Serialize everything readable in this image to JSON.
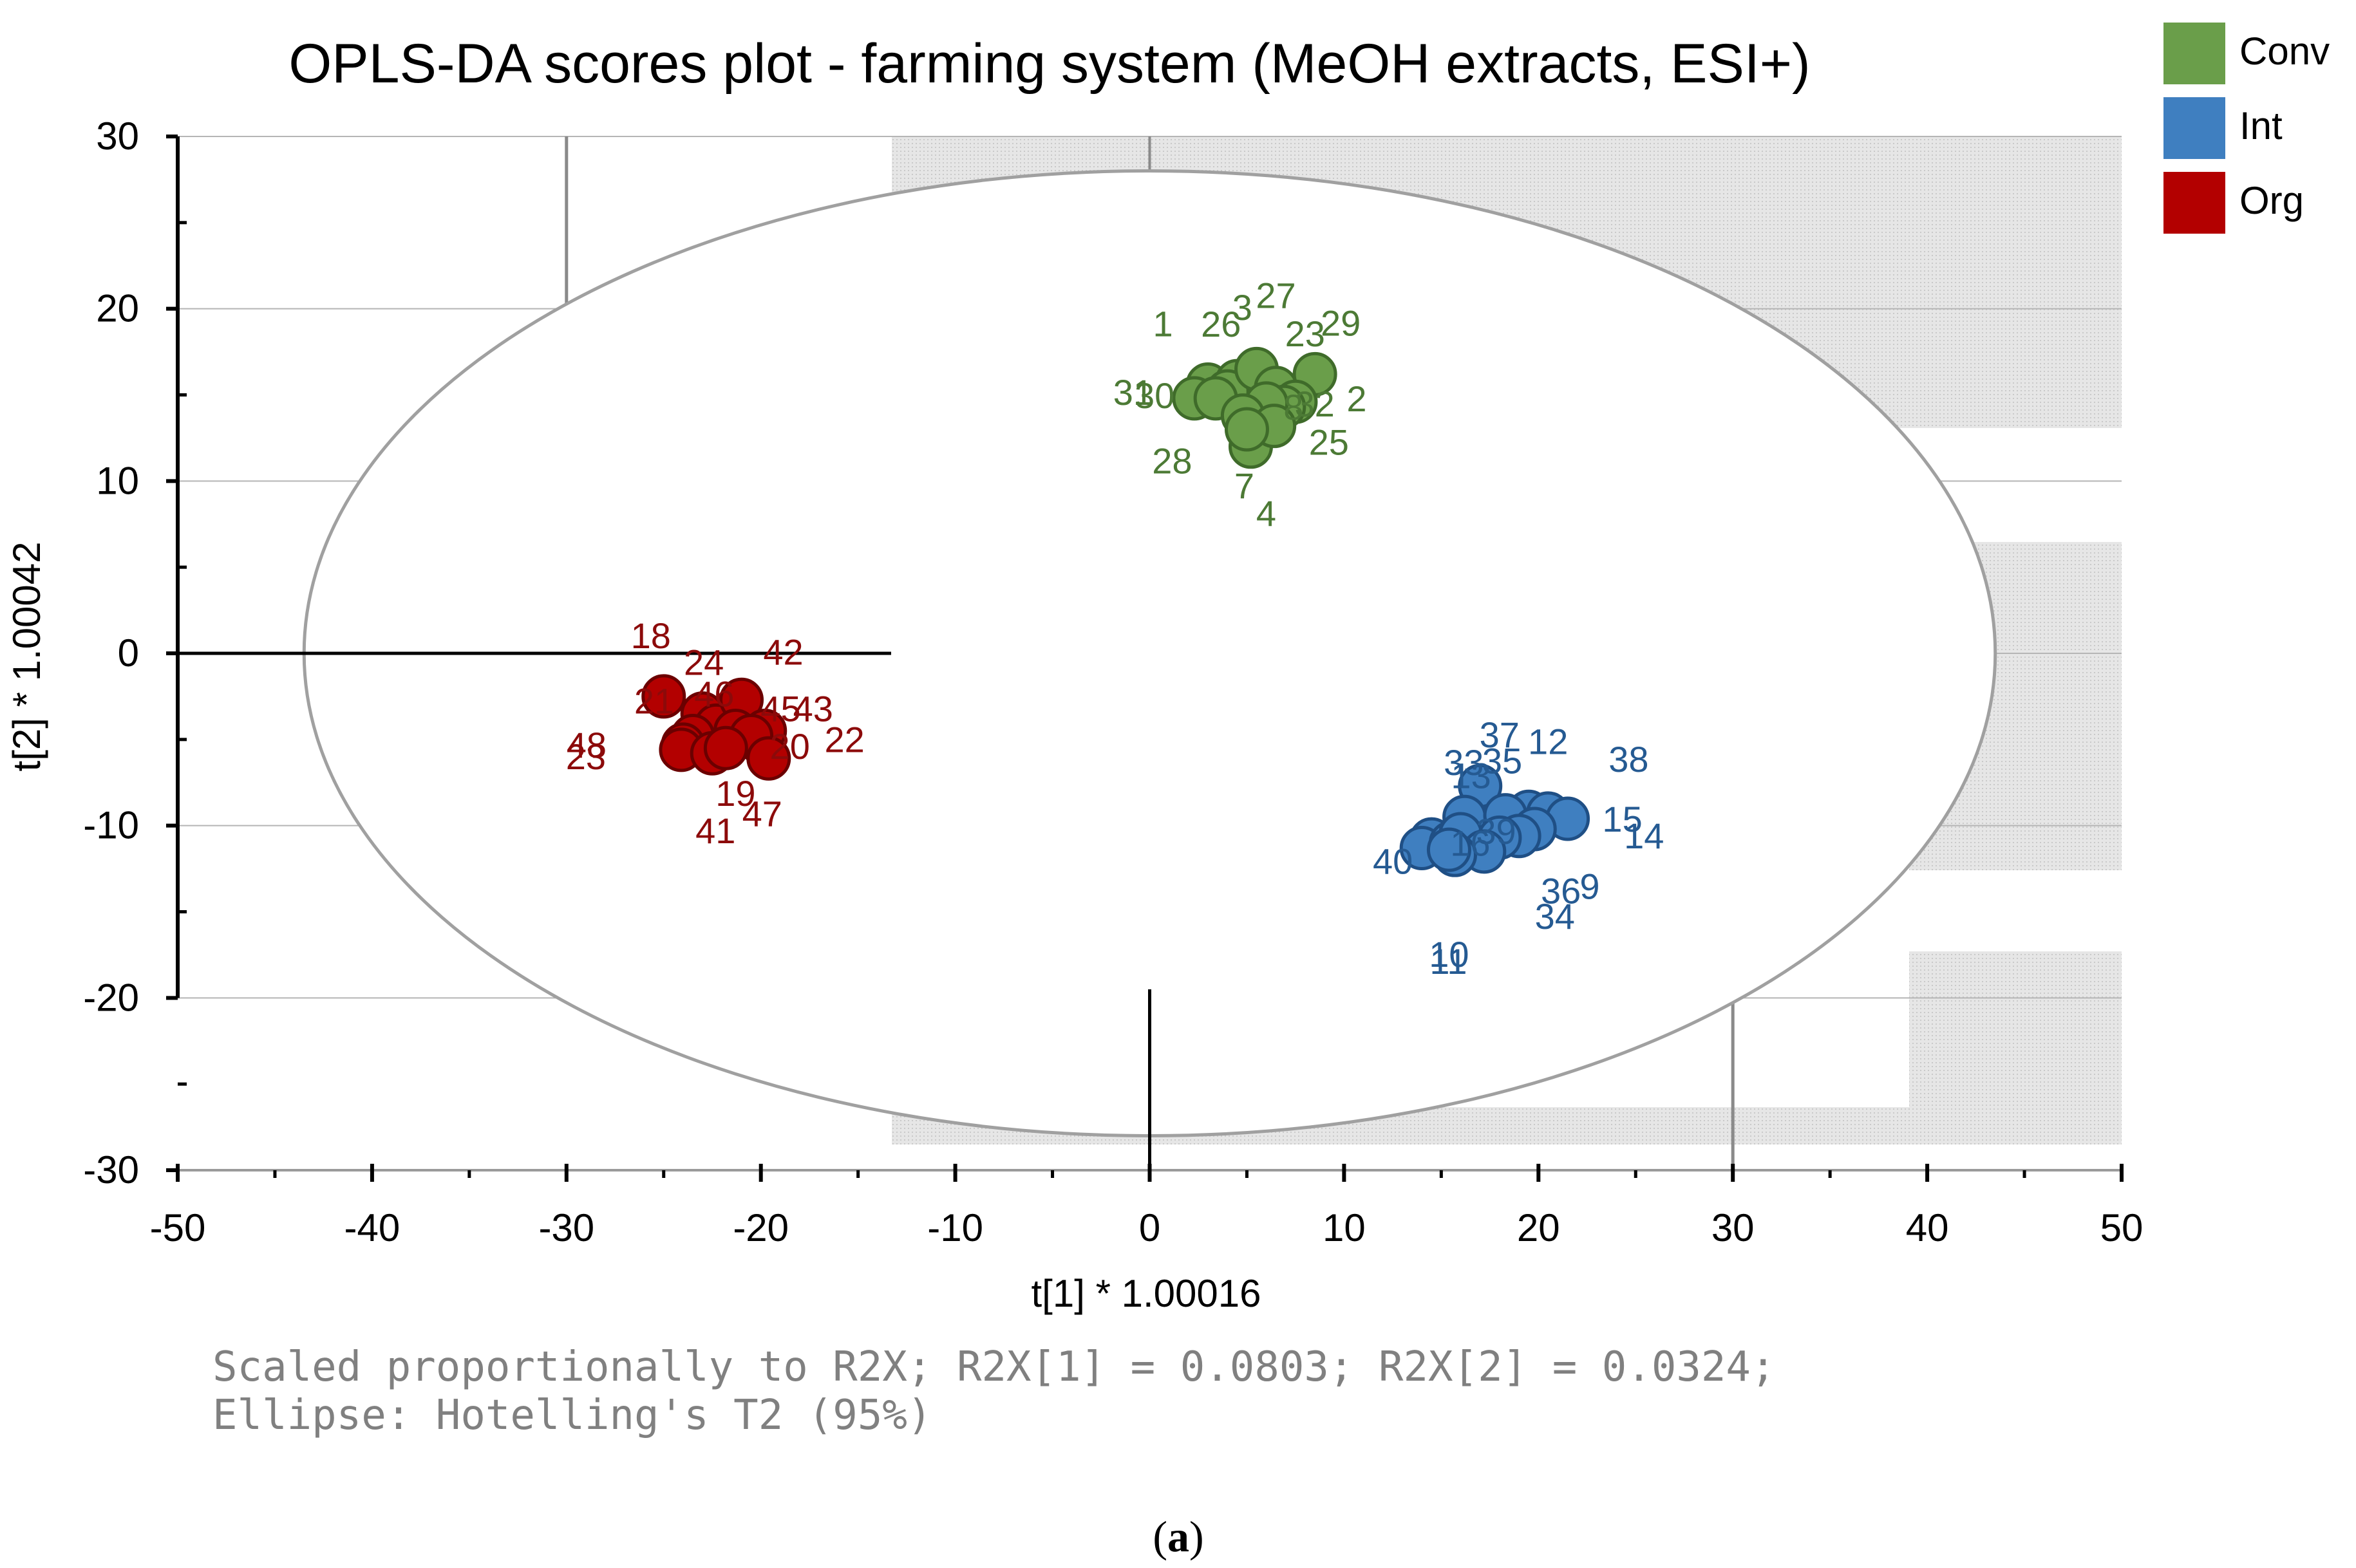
{
  "chart_data": {
    "type": "scatter",
    "title": "OPLS-DA scores plot - farming system (MeOH extracts, ESI+)",
    "xlabel": "t[1] * 1.00016",
    "ylabel": "t[2] * 1.00042",
    "xlim": [
      -50,
      50
    ],
    "ylim": [
      -30,
      30
    ],
    "xticks": [
      -50,
      -40,
      -30,
      -20,
      -10,
      0,
      10,
      20,
      30,
      40,
      50
    ],
    "yticks": [
      30,
      20,
      10,
      0,
      -10,
      -20,
      -30
    ],
    "tick_labels_x": [
      "-50",
      "-40",
      "-30",
      "-20",
      "-10",
      "0",
      "10",
      "20",
      "30",
      "40",
      "50"
    ],
    "tick_labels_y": [
      "30",
      "20",
      "10",
      "0",
      "-10",
      "-20",
      "-30"
    ],
    "ellipse": {
      "type": "Hotelling's T2 (95%)",
      "cx": 0,
      "cy": 0,
      "rx": 43.5,
      "ry": 28
    },
    "legend": {
      "position": "top-right",
      "entries": [
        "Conv",
        "Int",
        "Org"
      ]
    },
    "series": [
      {
        "name": "Conv",
        "color": "#6a9e4a",
        "points": [
          {
            "label": "1",
            "x": 3.0,
            "y": 15.6
          },
          {
            "label": "3",
            "x": 4.5,
            "y": 15.8
          },
          {
            "label": "26",
            "x": 4.0,
            "y": 15.2
          },
          {
            "label": "27",
            "x": 5.5,
            "y": 16.5
          },
          {
            "label": "23",
            "x": 6.5,
            "y": 15.4
          },
          {
            "label": "29",
            "x": 8.5,
            "y": 16.2
          },
          {
            "label": "2",
            "x": 7.5,
            "y": 14.6
          },
          {
            "label": "31",
            "x": 2.3,
            "y": 14.8
          },
          {
            "label": "30",
            "x": 3.4,
            "y": 14.8
          },
          {
            "label": "8",
            "x": 6.9,
            "y": 14.3
          },
          {
            "label": "32",
            "x": 6.0,
            "y": 14.5
          },
          {
            "label": "28",
            "x": 4.8,
            "y": 13.8
          },
          {
            "label": "7",
            "x": 5.2,
            "y": 12.0
          },
          {
            "label": "25",
            "x": 6.4,
            "y": 13.2
          },
          {
            "label": "4",
            "x": 5.0,
            "y": 13.0
          }
        ]
      },
      {
        "name": "Int",
        "color": "#3f7fc0",
        "points": [
          {
            "label": "12",
            "x": 19.5,
            "y": -9.2
          },
          {
            "label": "37",
            "x": 17.0,
            "y": -7.7
          },
          {
            "label": "38",
            "x": 20.5,
            "y": -9.3
          },
          {
            "label": "33",
            "x": 14.5,
            "y": -10.8
          },
          {
            "label": "13",
            "x": 16.2,
            "y": -9.5
          },
          {
            "label": "35",
            "x": 18.3,
            "y": -9.4
          },
          {
            "label": "15",
            "x": 21.5,
            "y": -9.6
          },
          {
            "label": "14",
            "x": 19.8,
            "y": -10.2
          },
          {
            "label": "40",
            "x": 14.0,
            "y": -11.3
          },
          {
            "label": "16",
            "x": 15.5,
            "y": -11.0
          },
          {
            "label": "39",
            "x": 16.0,
            "y": -10.5
          },
          {
            "label": "36",
            "x": 19.0,
            "y": -10.6
          },
          {
            "label": "9",
            "x": 18.0,
            "y": -10.7
          },
          {
            "label": "34",
            "x": 17.2,
            "y": -11.5
          },
          {
            "label": "11",
            "x": 15.7,
            "y": -11.7
          },
          {
            "label": "10",
            "x": 15.4,
            "y": -11.4
          }
        ]
      },
      {
        "name": "Org",
        "color": "#b30000",
        "points": [
          {
            "label": "18",
            "x": -25.0,
            "y": -2.5
          },
          {
            "label": "24",
            "x": -23.0,
            "y": -3.5
          },
          {
            "label": "46",
            "x": -22.3,
            "y": -4.2
          },
          {
            "label": "42",
            "x": -21.0,
            "y": -2.7
          },
          {
            "label": "45",
            "x": -21.3,
            "y": -4.5
          },
          {
            "label": "21",
            "x": -23.5,
            "y": -4.8
          },
          {
            "label": "48",
            "x": -24.0,
            "y": -5.3
          },
          {
            "label": "23",
            "x": -24.1,
            "y": -5.6
          },
          {
            "label": "20",
            "x": -20.0,
            "y": -5.2
          },
          {
            "label": "43",
            "x": -19.8,
            "y": -4.5
          },
          {
            "label": "22",
            "x": -20.5,
            "y": -4.8
          },
          {
            "label": "41",
            "x": -22.5,
            "y": -5.8
          },
          {
            "label": "47",
            "x": -19.6,
            "y": -6.1
          },
          {
            "label": "19",
            "x": -21.8,
            "y": -5.5
          }
        ]
      }
    ]
  },
  "footnote": {
    "line1": "Scaled proportionally to R2X; R2X[1] = 0.0803; R2X[2] = 0.0324;",
    "line2": "Ellipse: Hotelling's T2 (95%)"
  },
  "caption": {
    "open": "(",
    "letter": "a",
    "close": ")"
  }
}
